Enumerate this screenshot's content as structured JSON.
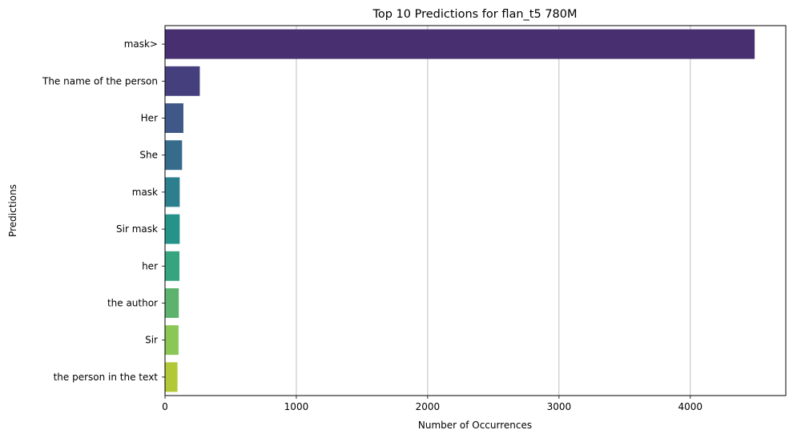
{
  "chart_data": {
    "type": "bar",
    "orientation": "horizontal",
    "title": "Top 10 Predictions for flan_t5 780M",
    "xlabel": "Number of Occurrences",
    "ylabel": "Predictions",
    "categories": [
      "mask>",
      "The name of the person",
      "Her",
      "She",
      "mask",
      "Sir mask",
      "her",
      "the author",
      "Sir",
      "the person in the text"
    ],
    "values": [
      4490,
      265,
      140,
      130,
      112,
      112,
      110,
      105,
      103,
      95
    ],
    "xlim": [
      0,
      4727
    ],
    "xticks": [
      0,
      1000,
      2000,
      3000,
      4000
    ],
    "grid": "x",
    "legend": "none",
    "colormap": "viridis",
    "colors": [
      "#472f70",
      "#45407d",
      "#3f5887",
      "#376b8c",
      "#2e7f8e",
      "#26938b",
      "#36a57f",
      "#5db36d",
      "#8ac756",
      "#b3c836"
    ]
  }
}
